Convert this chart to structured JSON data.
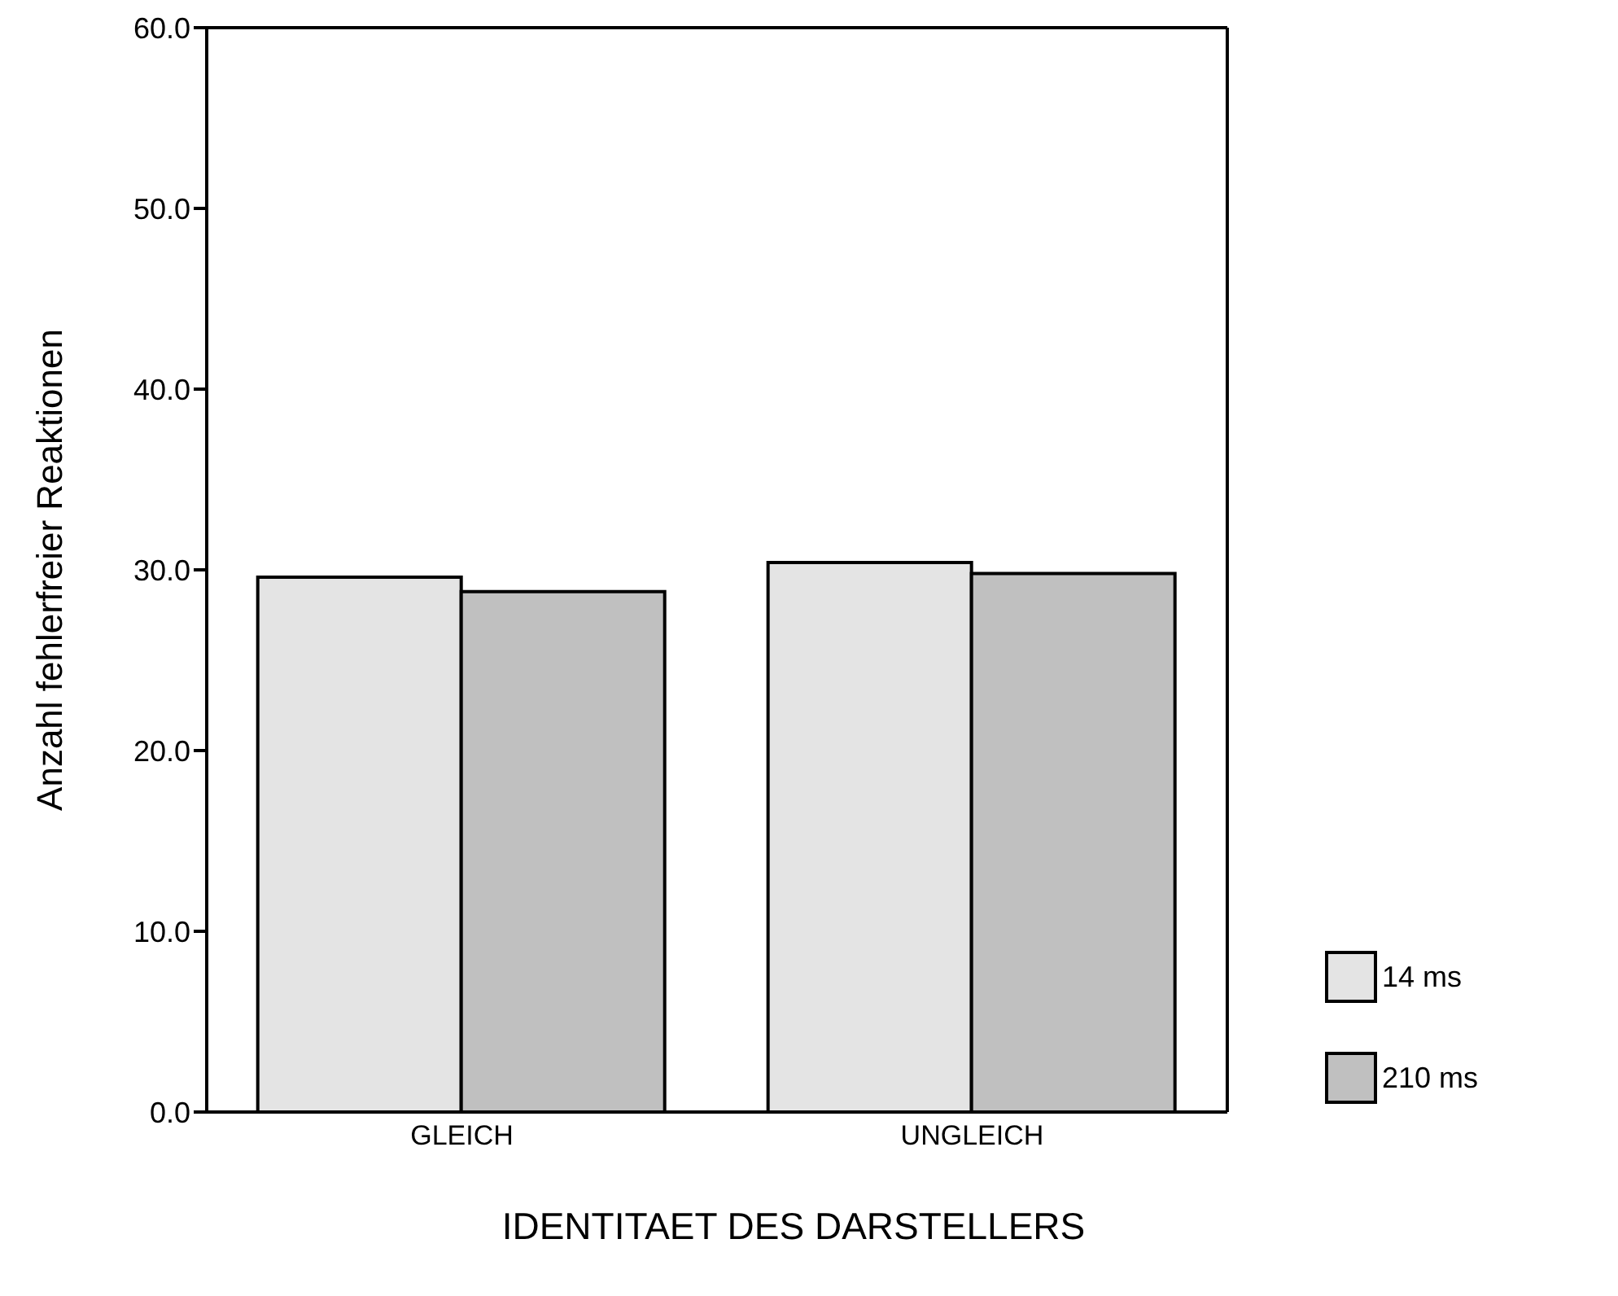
{
  "chart_data": {
    "type": "bar",
    "xlabel": "IDENTITAET DES DARSTELLERS",
    "ylabel": "Anzahl fehlerfreier Reaktionen",
    "categories": [
      "GLEICH",
      "UNGLEICH"
    ],
    "series": [
      {
        "name": "14 ms",
        "color": "#e4e4e4",
        "values": [
          29.6,
          30.4
        ]
      },
      {
        "name": "210 ms",
        "color": "#c0c0c0",
        "values": [
          28.8,
          29.8
        ]
      }
    ],
    "ylim": [
      0,
      60
    ],
    "yticks": [
      {
        "value": 0,
        "label": "0.0"
      },
      {
        "value": 10,
        "label": "10.0"
      },
      {
        "value": 20,
        "label": "20.0"
      },
      {
        "value": 30,
        "label": "30.0"
      },
      {
        "value": 40,
        "label": "40.0"
      },
      {
        "value": 50,
        "label": "50.0"
      },
      {
        "value": 60,
        "label": "60.0"
      }
    ],
    "grid": false,
    "legend": "bottom right"
  }
}
